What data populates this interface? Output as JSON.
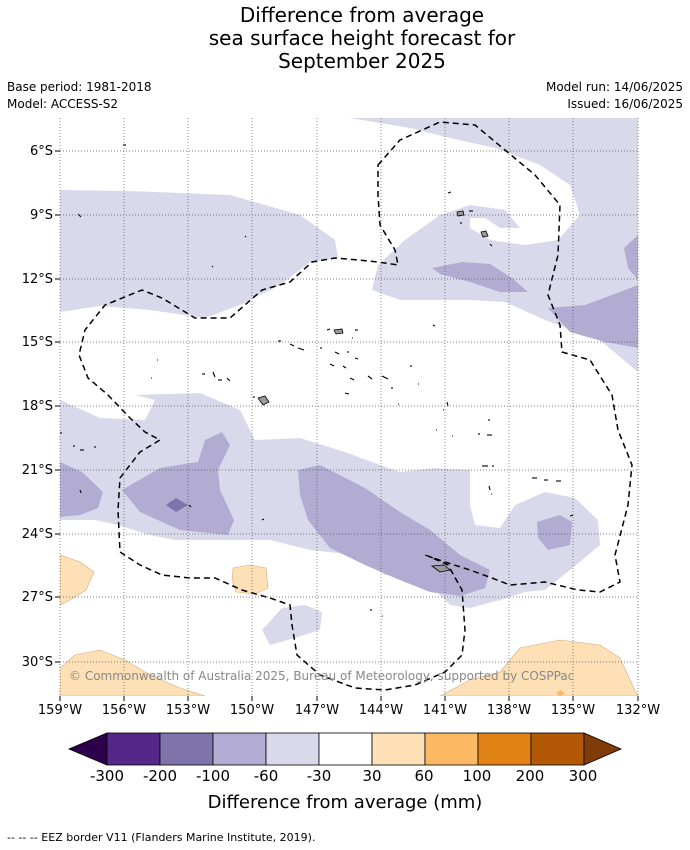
{
  "title": {
    "line1": "Difference from average",
    "line2": "sea surface height forecast for",
    "line3": "September 2025"
  },
  "meta": {
    "base_period": "Base period: 1981-2018",
    "model": "Model: ACCESS-S2",
    "model_run": "Model run: 14/06/2025",
    "issued": "Issued: 16/06/2025"
  },
  "map": {
    "latitude_labels": [
      "6°S",
      "9°S",
      "12°S",
      "15°S",
      "18°S",
      "21°S",
      "24°S",
      "27°S",
      "30°S"
    ],
    "longitude_labels": [
      "159°W",
      "156°W",
      "153°W",
      "150°W",
      "147°W",
      "144°W",
      "141°W",
      "138°W",
      "135°W",
      "132°W"
    ],
    "credit": "© Commonwealth of Australia 2025, Bureau of Meteorology, supported by COSPPac"
  },
  "colorbar": {
    "title": "Difference from average (mm)",
    "tick_labels": [
      "-300",
      "-200",
      "-100",
      "-60",
      "-30",
      "30",
      "60",
      "100",
      "200",
      "300"
    ],
    "colors": {
      "below_-300": "#2d004b",
      "-300_-200": "#542788",
      "-200_-100": "#8073ac",
      "-100_-60": "#b2abd2",
      "-60_-30": "#d8daeb",
      "-30_30": "#ffffff",
      "30_60": "#fee0b6",
      "60_100": "#fdb863",
      "100_200": "#e08214",
      "200_300": "#b35806",
      "above_300": "#7f3b08"
    }
  },
  "legend": {
    "footnote": "--  --  -- EEZ border V11 (Flanders Marine Institute, 2019)."
  }
}
